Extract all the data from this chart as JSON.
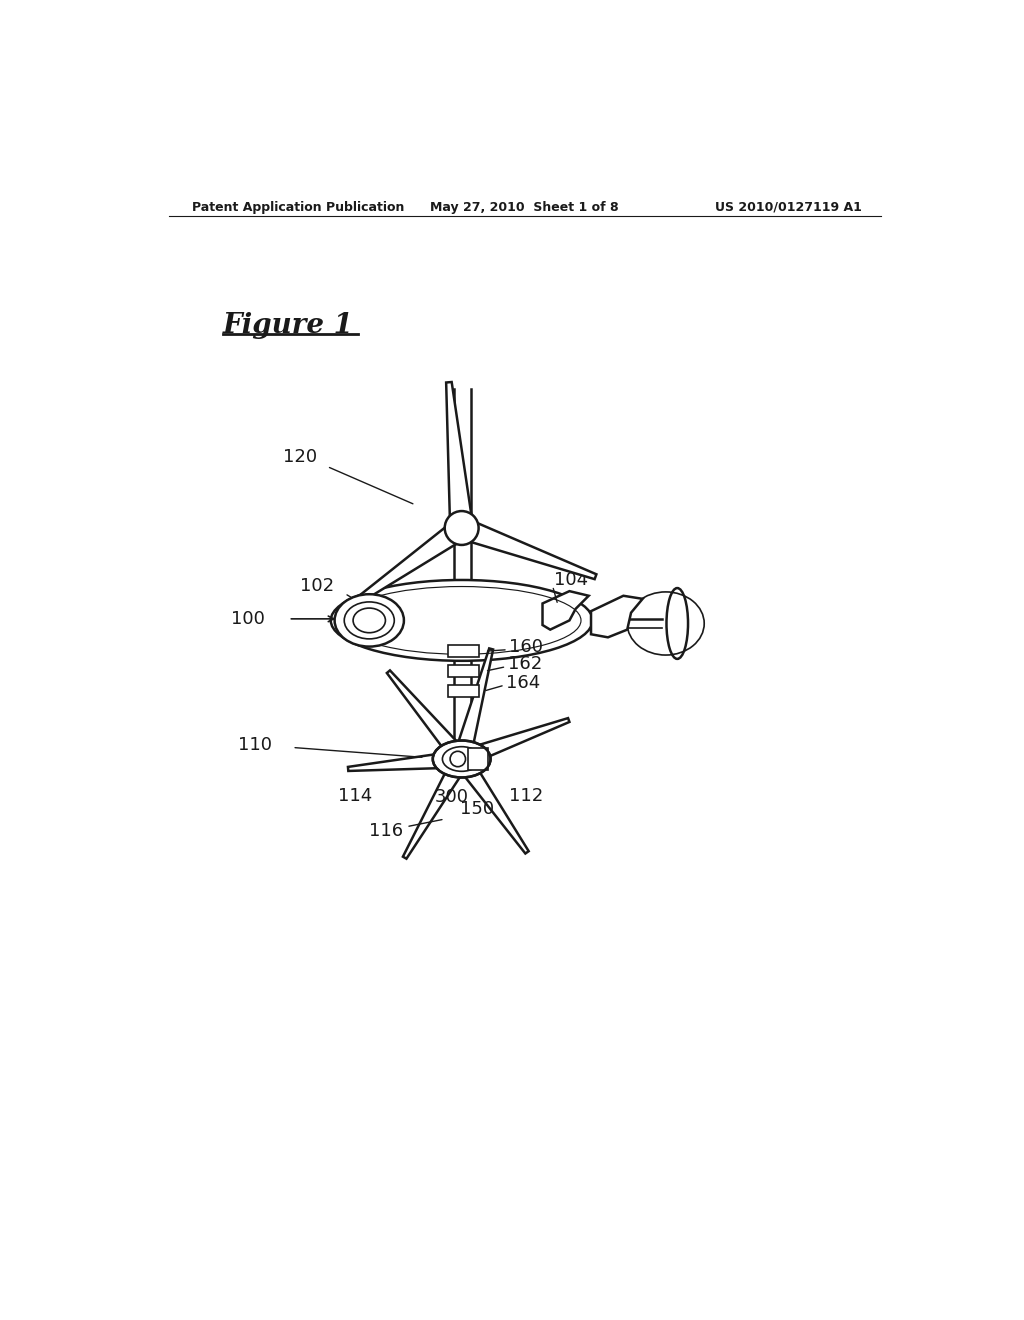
{
  "bg_color": "#ffffff",
  "line_color": "#1a1a1a",
  "fig_width": 10.24,
  "fig_height": 13.2,
  "header_left": "Patent Application Publication",
  "header_center": "May 27, 2010  Sheet 1 of 8",
  "header_right": "US 2010/0127119 A1",
  "figure_label": "Figure 1",
  "lw_main": 1.8,
  "lw_thin": 1.2,
  "label_fontsize": 13,
  "header_fontsize": 9
}
